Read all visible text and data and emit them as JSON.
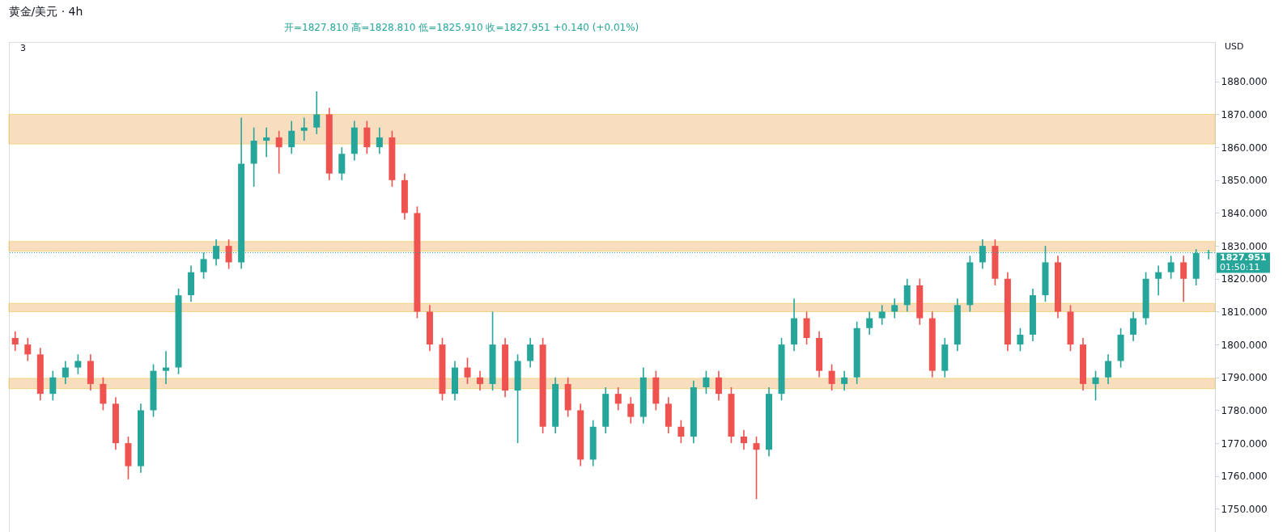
{
  "chart_data": {
    "type": "candlestick",
    "title": "黄金/美元 · 4h",
    "annotations": [
      "开=1827.810 高=1828.810 低=1825.910 收=1827.951 +0.140 (+0.01%)",
      "3",
      "USD",
      "01:50:11"
    ],
    "categories": [
      null,
      null,
      null,
      null,
      null,
      null,
      null,
      null,
      null,
      null,
      null,
      null,
      null,
      null,
      null,
      null,
      null,
      null,
      null,
      null,
      null,
      null,
      null,
      null,
      null,
      null,
      null,
      null,
      null,
      null,
      null,
      null,
      null,
      null,
      null,
      null,
      null,
      null,
      null,
      null,
      null,
      null,
      null,
      null,
      null,
      null,
      null,
      null,
      null,
      null,
      null,
      null,
      null,
      null,
      null,
      null,
      null,
      null,
      null,
      null,
      null,
      null,
      null,
      null,
      null,
      null,
      null,
      null,
      null,
      null,
      null,
      null,
      null,
      null,
      null,
      null,
      null,
      null,
      null,
      null,
      null,
      null,
      null,
      null,
      null,
      null,
      null,
      null,
      null,
      null,
      null,
      null,
      null,
      null,
      null,
      null
    ],
    "ohlc": [
      [
        1802,
        1804,
        1798,
        1800
      ],
      [
        1800,
        1802,
        1795,
        1797
      ],
      [
        1797,
        1799,
        1783,
        1785
      ],
      [
        1785,
        1792,
        1783,
        1790
      ],
      [
        1790,
        1795,
        1788,
        1793
      ],
      [
        1793,
        1797,
        1791,
        1795
      ],
      [
        1795,
        1797,
        1786,
        1788
      ],
      [
        1788,
        1790,
        1780,
        1782
      ],
      [
        1782,
        1784,
        1768,
        1770
      ],
      [
        1770,
        1772,
        1759,
        1763
      ],
      [
        1763,
        1782,
        1761,
        1780
      ],
      [
        1780,
        1794,
        1778,
        1792
      ],
      [
        1792,
        1798,
        1788,
        1793
      ],
      [
        1793,
        1817,
        1791,
        1815
      ],
      [
        1815,
        1824,
        1813,
        1822
      ],
      [
        1822,
        1828,
        1820,
        1826
      ],
      [
        1826,
        1832,
        1824,
        1830
      ],
      [
        1830,
        1832,
        1823,
        1825
      ],
      [
        1825,
        1869,
        1823,
        1855
      ],
      [
        1855,
        1866,
        1848,
        1862
      ],
      [
        1862,
        1866,
        1857,
        1863
      ],
      [
        1863,
        1865,
        1852,
        1860
      ],
      [
        1860,
        1868,
        1858,
        1865
      ],
      [
        1865,
        1869,
        1862,
        1866
      ],
      [
        1866,
        1877,
        1864,
        1870
      ],
      [
        1870,
        1872,
        1850,
        1852
      ],
      [
        1852,
        1860,
        1850,
        1858
      ],
      [
        1858,
        1868,
        1856,
        1866
      ],
      [
        1866,
        1868,
        1858,
        1860
      ],
      [
        1860,
        1866,
        1858,
        1863
      ],
      [
        1863,
        1865,
        1848,
        1850
      ],
      [
        1850,
        1852,
        1838,
        1840
      ],
      [
        1840,
        1842,
        1808,
        1810
      ],
      [
        1810,
        1812,
        1798,
        1800
      ],
      [
        1800,
        1802,
        1783,
        1785
      ],
      [
        1785,
        1795,
        1783,
        1793
      ],
      [
        1793,
        1796,
        1788,
        1790
      ],
      [
        1790,
        1792,
        1786,
        1788
      ],
      [
        1788,
        1810,
        1786,
        1800
      ],
      [
        1800,
        1802,
        1784,
        1786
      ],
      [
        1786,
        1797,
        1770,
        1795
      ],
      [
        1795,
        1802,
        1793,
        1800
      ],
      [
        1800,
        1802,
        1773,
        1775
      ],
      [
        1775,
        1790,
        1773,
        1788
      ],
      [
        1788,
        1790,
        1778,
        1780
      ],
      [
        1780,
        1782,
        1763,
        1765
      ],
      [
        1765,
        1777,
        1763,
        1775
      ],
      [
        1775,
        1787,
        1773,
        1785
      ],
      [
        1785,
        1787,
        1780,
        1782
      ],
      [
        1782,
        1784,
        1776,
        1778
      ],
      [
        1778,
        1793,
        1776,
        1790
      ],
      [
        1790,
        1792,
        1780,
        1782
      ],
      [
        1782,
        1784,
        1773,
        1775
      ],
      [
        1775,
        1777,
        1770,
        1772
      ],
      [
        1772,
        1789,
        1770,
        1787
      ],
      [
        1787,
        1792,
        1785,
        1790
      ],
      [
        1790,
        1792,
        1783,
        1785
      ],
      [
        1785,
        1787,
        1770,
        1772
      ],
      [
        1772,
        1774,
        1768,
        1770
      ],
      [
        1770,
        1772,
        1753,
        1768
      ],
      [
        1768,
        1787,
        1766,
        1785
      ],
      [
        1785,
        1802,
        1783,
        1800
      ],
      [
        1800,
        1814,
        1798,
        1808
      ],
      [
        1808,
        1810,
        1800,
        1802
      ],
      [
        1802,
        1804,
        1790,
        1792
      ],
      [
        1792,
        1794,
        1786,
        1788
      ],
      [
        1788,
        1792,
        1786,
        1790
      ],
      [
        1790,
        1807,
        1788,
        1805
      ],
      [
        1805,
        1810,
        1803,
        1808
      ],
      [
        1808,
        1812,
        1806,
        1810
      ],
      [
        1810,
        1814,
        1808,
        1812
      ],
      [
        1812,
        1820,
        1810,
        1818
      ],
      [
        1818,
        1820,
        1806,
        1808
      ],
      [
        1808,
        1810,
        1790,
        1792
      ],
      [
        1792,
        1802,
        1790,
        1800
      ],
      [
        1800,
        1814,
        1798,
        1812
      ],
      [
        1812,
        1827,
        1810,
        1825
      ],
      [
        1825,
        1832,
        1823,
        1830
      ],
      [
        1830,
        1832,
        1818,
        1820
      ],
      [
        1820,
        1822,
        1798,
        1800
      ],
      [
        1800,
        1805,
        1798,
        1803
      ],
      [
        1803,
        1817,
        1801,
        1815
      ],
      [
        1815,
        1830,
        1813,
        1825
      ],
      [
        1825,
        1827,
        1808,
        1810
      ],
      [
        1810,
        1812,
        1798,
        1800
      ],
      [
        1800,
        1802,
        1786,
        1788
      ],
      [
        1788,
        1792,
        1783,
        1790
      ],
      [
        1790,
        1797,
        1788,
        1795
      ],
      [
        1795,
        1805,
        1793,
        1803
      ],
      [
        1803,
        1810,
        1801,
        1808
      ],
      [
        1808,
        1822,
        1806,
        1820
      ],
      [
        1820,
        1824,
        1815,
        1822
      ],
      [
        1822,
        1827,
        1820,
        1825
      ],
      [
        1825,
        1827,
        1813,
        1820
      ],
      [
        1820,
        1829,
        1818,
        1827.81
      ],
      [
        1827.81,
        1828.81,
        1825.91,
        1827.951
      ]
    ],
    "colors": [
      "#ef5350",
      "#ef5350",
      "#ef5350",
      "#26a69a",
      "#26a69a",
      "#26a69a",
      "#ef5350",
      "#ef5350",
      "#ef5350",
      "#ef5350",
      "#26a69a",
      "#26a69a",
      "#26a69a",
      "#26a69a",
      "#26a69a",
      "#26a69a",
      "#26a69a",
      "#ef5350",
      "#26a69a",
      "#26a69a",
      "#26a69a",
      "#ef5350",
      "#26a69a",
      "#26a69a",
      "#26a69a",
      "#ef5350",
      "#26a69a",
      "#26a69a",
      "#ef5350",
      "#26a69a",
      "#ef5350",
      "#ef5350",
      "#ef5350",
      "#ef5350",
      "#ef5350",
      "#26a69a",
      "#ef5350",
      "#ef5350",
      "#26a69a",
      "#ef5350",
      "#26a69a",
      "#26a69a",
      "#ef5350",
      "#26a69a",
      "#ef5350",
      "#ef5350",
      "#26a69a",
      "#26a69a",
      "#ef5350",
      "#ef5350",
      "#26a69a",
      "#ef5350",
      "#ef5350",
      "#ef5350",
      "#26a69a",
      "#26a69a",
      "#ef5350",
      "#ef5350",
      "#ef5350",
      "#ef5350",
      "#26a69a",
      "#26a69a",
      "#26a69a",
      "#ef5350",
      "#ef5350",
      "#ef5350",
      "#26a69a",
      "#26a69a",
      "#26a69a",
      "#26a69a",
      "#26a69a",
      "#26a69a",
      "#ef5350",
      "#ef5350",
      "#26a69a",
      "#26a69a",
      "#26a69a",
      "#26a69a",
      "#ef5350",
      "#ef5350",
      "#26a69a",
      "#26a69a",
      "#26a69a",
      "#ef5350",
      "#ef5350",
      "#ef5350",
      "#26a69a",
      "#26a69a",
      "#26a69a",
      "#26a69a",
      "#26a69a",
      "#26a69a",
      "#26a69a",
      "#ef5350",
      "#26a69a",
      "#26a69a"
    ],
    "ylim": [
      1742,
      1892
    ],
    "yticks": [
      {
        "value": 1750,
        "label": "1750.000"
      },
      {
        "value": 1760,
        "label": "1760.000"
      },
      {
        "value": 1770,
        "label": "1770.000"
      },
      {
        "value": 1780,
        "label": "1780.000"
      },
      {
        "value": 1790,
        "label": "1790.000"
      },
      {
        "value": 1800,
        "label": "1800.000"
      },
      {
        "value": 1810,
        "label": "1810.000"
      },
      {
        "value": 1820,
        "label": "1820.000"
      },
      {
        "value": 1830,
        "label": "1830.000"
      },
      {
        "value": 1840,
        "label": "1840.000"
      },
      {
        "value": 1850,
        "label": "1850.000"
      },
      {
        "value": 1860,
        "label": "1860.000"
      },
      {
        "value": 1870,
        "label": "1870.000"
      },
      {
        "value": 1880,
        "label": "1880.000"
      }
    ],
    "ref_lines": [
      {
        "axis": "y",
        "value": 1827.951,
        "label": "1827.951",
        "color": "#26a69a",
        "line_style": "dotted"
      }
    ],
    "bands": [
      {
        "axis": "y",
        "from": 1861,
        "to": 1870,
        "color": "#f5c896"
      },
      {
        "axis": "y",
        "from": 1828.4,
        "to": 1831.3,
        "color": "#f5c896"
      },
      {
        "axis": "y",
        "from": 1810,
        "to": 1812.5,
        "color": "#f5c896"
      },
      {
        "axis": "y",
        "from": 1786.6,
        "to": 1789.7,
        "color": "#f5c896"
      }
    ],
    "grid": false
  }
}
